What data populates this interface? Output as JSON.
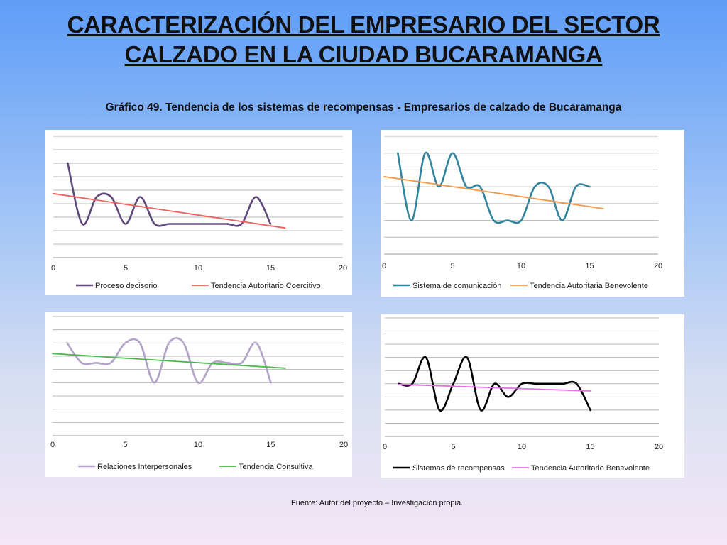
{
  "title_line1": "CARACTERIZACIÓN DEL EMPRESARIO DEL SECTOR",
  "title_line2": "CALZADO EN LA CIUDAD BUCARAMANGA",
  "caption": "Gráfico 49. Tendencia de los sistemas de recompensas - Empresarios de calzado de Bucaramanga",
  "source": "Fuente: Autor del proyecto – Investigación propia.",
  "chart_data": [
    {
      "type": "line",
      "xlim": [
        0,
        20
      ],
      "xticks": [
        0,
        5,
        10,
        15,
        20
      ],
      "ylim": [
        0,
        9
      ],
      "grid": true,
      "legend": "bottom",
      "series": [
        {
          "name": "Proceso decisorio",
          "color": "#60497a",
          "smooth": true,
          "x": [
            1,
            2,
            3,
            4,
            5,
            6,
            7,
            8,
            9,
            10,
            11,
            12,
            13,
            14,
            15
          ],
          "y": [
            7,
            2.5,
            4.5,
            4.5,
            2.5,
            4.5,
            2.5,
            2.5,
            2.5,
            2.5,
            2.5,
            2.5,
            2.5,
            4.5,
            2.5
          ]
        },
        {
          "name": "Tendencia  Autoritario Coercitivo",
          "color": "#f0605a",
          "smooth": false,
          "x": [
            0,
            16
          ],
          "y": [
            4.75,
            2.2
          ]
        }
      ]
    },
    {
      "type": "line",
      "xlim": [
        0,
        20
      ],
      "xticks": [
        0,
        5,
        10,
        15,
        20
      ],
      "ylim": [
        0,
        7
      ],
      "grid": true,
      "legend": "bottom",
      "series": [
        {
          "name": "Sistema de comunicación",
          "color": "#31849b",
          "smooth": true,
          "x": [
            1,
            2,
            3,
            4,
            5,
            6,
            7,
            8,
            9,
            10,
            11,
            12,
            13,
            14,
            15
          ],
          "y": [
            6,
            2,
            6,
            4,
            6,
            4,
            4,
            2,
            2,
            2,
            4,
            4,
            2,
            4,
            4
          ]
        },
        {
          "name": "Tendencia  Autoritaria Benevolente",
          "color": "#f79646",
          "smooth": false,
          "x": [
            0,
            16
          ],
          "y": [
            4.6,
            2.7
          ]
        }
      ]
    },
    {
      "type": "line",
      "xlim": [
        0,
        20
      ],
      "xticks": [
        0,
        5,
        10,
        15,
        20
      ],
      "ylim": [
        0,
        9
      ],
      "grid": true,
      "legend": "bottom",
      "series": [
        {
          "name": "Relaciones  Interpersonales",
          "color": "#b3a2c7",
          "smooth": true,
          "x": [
            1,
            2,
            3,
            4,
            5,
            6,
            7,
            8,
            9,
            10,
            11,
            12,
            13,
            14,
            15
          ],
          "y": [
            7,
            5.5,
            5.5,
            5.5,
            7,
            7,
            4,
            7,
            7,
            4,
            5.5,
            5.5,
            5.5,
            7,
            4
          ]
        },
        {
          "name": "Tendencia  Consultiva",
          "color": "#4cb84c",
          "smooth": false,
          "x": [
            0,
            16
          ],
          "y": [
            6.2,
            5.1
          ]
        }
      ]
    },
    {
      "type": "line",
      "xlim": [
        0,
        20
      ],
      "xticks": [
        0,
        5,
        10,
        15,
        20
      ],
      "ylim": [
        0,
        9
      ],
      "grid": true,
      "legend": "bottom",
      "series": [
        {
          "name": "Sistemas de recompensas",
          "color": "#000000",
          "smooth": true,
          "x": [
            1,
            2,
            3,
            4,
            5,
            6,
            7,
            8,
            9,
            10,
            11,
            12,
            13,
            14,
            15
          ],
          "y": [
            4,
            4,
            6,
            2,
            4,
            6,
            2,
            4,
            3,
            4,
            4,
            4,
            4,
            4,
            2
          ]
        },
        {
          "name": "Tendencia  Autoritario Benevolente",
          "color": "#e86ae8",
          "smooth": false,
          "x": [
            1,
            15
          ],
          "y": [
            3.95,
            3.45
          ]
        }
      ]
    }
  ]
}
